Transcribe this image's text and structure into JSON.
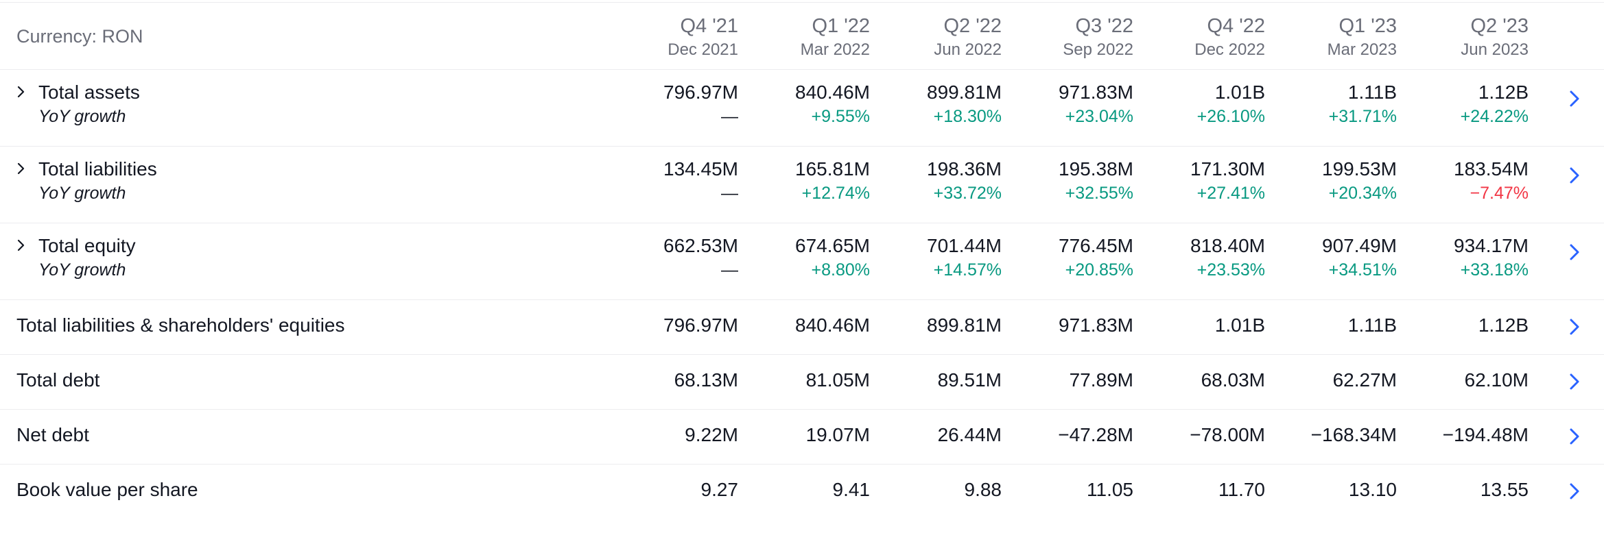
{
  "currency_label": "Currency: RON",
  "periods": [
    {
      "quarter": "Q4 '21",
      "date": "Dec 2021"
    },
    {
      "quarter": "Q1 '22",
      "date": "Mar 2022"
    },
    {
      "quarter": "Q2 '22",
      "date": "Jun 2022"
    },
    {
      "quarter": "Q3 '22",
      "date": "Sep 2022"
    },
    {
      "quarter": "Q4 '22",
      "date": "Dec 2022"
    },
    {
      "quarter": "Q1 '23",
      "date": "Mar 2023"
    },
    {
      "quarter": "Q2 '23",
      "date": "Jun 2023"
    }
  ],
  "rows": [
    {
      "title": "Total assets",
      "subtitle": "YoY growth",
      "values": [
        "796.97M",
        "840.46M",
        "899.81M",
        "971.83M",
        "1.01B",
        "1.11B",
        "1.12B"
      ],
      "growth": [
        "—",
        "+9.55%",
        "+18.30%",
        "+23.04%",
        "+26.10%",
        "+31.71%",
        "+24.22%"
      ]
    },
    {
      "title": "Total liabilities",
      "subtitle": "YoY growth",
      "values": [
        "134.45M",
        "165.81M",
        "198.36M",
        "195.38M",
        "171.30M",
        "199.53M",
        "183.54M"
      ],
      "growth": [
        "—",
        "+12.74%",
        "+33.72%",
        "+32.55%",
        "+27.41%",
        "+20.34%",
        "−7.47%"
      ]
    },
    {
      "title": "Total equity",
      "subtitle": "YoY growth",
      "values": [
        "662.53M",
        "674.65M",
        "701.44M",
        "776.45M",
        "818.40M",
        "907.49M",
        "934.17M"
      ],
      "growth": [
        "—",
        "+8.80%",
        "+14.57%",
        "+20.85%",
        "+23.53%",
        "+34.51%",
        "+33.18%"
      ]
    },
    {
      "title": "Total liabilities & shareholders' equities",
      "values": [
        "796.97M",
        "840.46M",
        "899.81M",
        "971.83M",
        "1.01B",
        "1.11B",
        "1.12B"
      ]
    },
    {
      "title": "Total debt",
      "values": [
        "68.13M",
        "81.05M",
        "89.51M",
        "77.89M",
        "68.03M",
        "62.27M",
        "62.10M"
      ]
    },
    {
      "title": "Net debt",
      "values": [
        "9.22M",
        "19.07M",
        "26.44M",
        "−47.28M",
        "−78.00M",
        "−168.34M",
        "−194.48M"
      ]
    },
    {
      "title": "Book value per share",
      "values": [
        "9.27",
        "9.41",
        "9.88",
        "11.05",
        "11.70",
        "13.10",
        "13.55"
      ]
    }
  ],
  "colors": {
    "positive": "#089981",
    "negative": "#f23645",
    "link": "#2962ff",
    "muted": "#6a6d78"
  },
  "icons": {
    "expand": "chevron-right-icon",
    "open": "chevron-right-icon"
  }
}
